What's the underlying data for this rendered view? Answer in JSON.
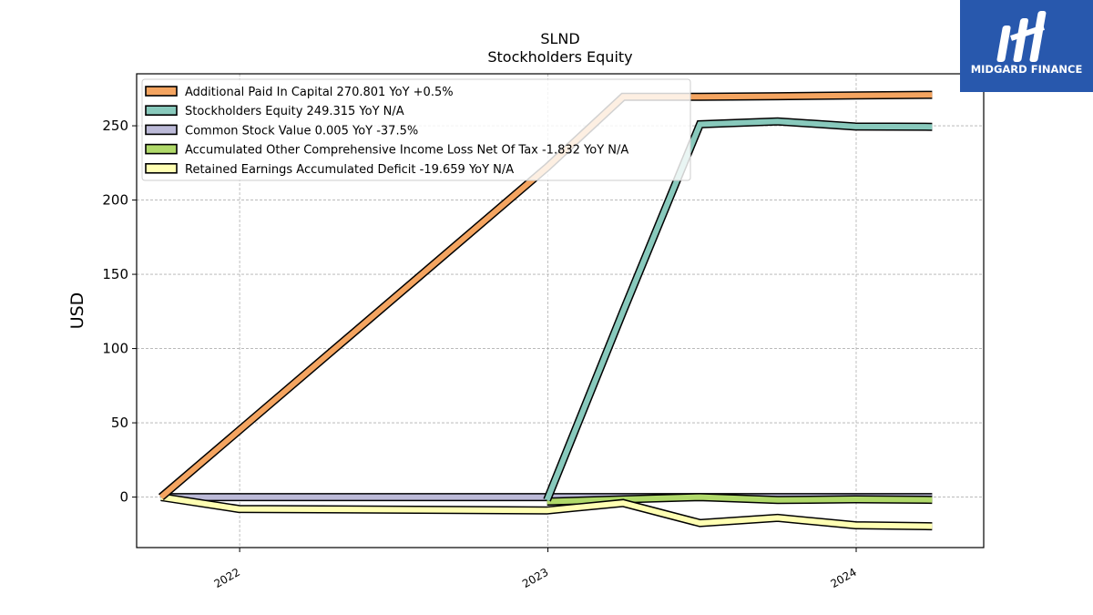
{
  "chart_data": {
    "type": "line",
    "title": "SLND",
    "subtitle": "Stockholders  Equity",
    "ylabel": "USD",
    "xlabel": "",
    "xlim": [
      "2021-09-01",
      "2024-05-31"
    ],
    "ylim": [
      -34,
      285
    ],
    "yticks": [
      0,
      50,
      100,
      150,
      200,
      250
    ],
    "xticks": [
      {
        "label": "2022",
        "date": "2022-01-01"
      },
      {
        "label": "2023",
        "date": "2023-01-01"
      },
      {
        "label": "2024",
        "date": "2024-01-01"
      }
    ],
    "grid": true,
    "legend_position": "top-left",
    "series": [
      {
        "name": "Additional Paid In Capital  270.801 YoY +0.5%",
        "color": "#f4a460",
        "points": [
          {
            "x": "2021-09-30",
            "y": 0
          },
          {
            "x": "2022-12-31",
            "y": 222
          },
          {
            "x": "2023-03-31",
            "y": 269.5
          },
          {
            "x": "2023-06-30",
            "y": 269.5
          },
          {
            "x": "2023-09-30",
            "y": 269.9
          },
          {
            "x": "2023-12-31",
            "y": 270.4
          },
          {
            "x": "2024-03-31",
            "y": 270.801
          }
        ]
      },
      {
        "name": "Stockholders Equity  249.315 YoY N/A",
        "color": "#88c9bc",
        "points": [
          {
            "x": "2022-12-31",
            "y": -2
          },
          {
            "x": "2023-03-31",
            "y": 125
          },
          {
            "x": "2023-06-30",
            "y": 251
          },
          {
            "x": "2023-09-30",
            "y": 253
          },
          {
            "x": "2023-12-31",
            "y": 249.5
          },
          {
            "x": "2024-03-31",
            "y": 249.315
          }
        ]
      },
      {
        "name": "Common Stock Value  0.005 YoY -37.5%",
        "color": "#bcbad8",
        "points": [
          {
            "x": "2021-09-30",
            "y": 0.008
          },
          {
            "x": "2022-12-31",
            "y": 0.008
          },
          {
            "x": "2023-06-30",
            "y": 0.005
          },
          {
            "x": "2024-03-31",
            "y": 0.005
          }
        ]
      },
      {
        "name": "Accumulated Other Comprehensive Income Loss Net Of Tax  -1.832 YoY N/A",
        "color": "#b0d96a",
        "points": [
          {
            "x": "2022-12-31",
            "y": -3
          },
          {
            "x": "2023-06-30",
            "y": 0
          },
          {
            "x": "2023-09-30",
            "y": -2
          },
          {
            "x": "2023-12-31",
            "y": -1.5
          },
          {
            "x": "2024-03-31",
            "y": -1.832
          }
        ]
      },
      {
        "name": "Retained Earnings Accumulated Deficit  -19.659 YoY N/A",
        "color": "#ffffb3",
        "points": [
          {
            "x": "2021-09-30",
            "y": 0
          },
          {
            "x": "2021-12-31",
            "y": -8
          },
          {
            "x": "2022-12-31",
            "y": -9
          },
          {
            "x": "2023-03-31",
            "y": -4
          },
          {
            "x": "2023-06-30",
            "y": -17.5
          },
          {
            "x": "2023-09-30",
            "y": -14
          },
          {
            "x": "2023-12-31",
            "y": -19
          },
          {
            "x": "2024-03-31",
            "y": -19.659
          }
        ]
      }
    ]
  },
  "logo": {
    "text": "MIDGARD FINANCE",
    "icon": "midgard-logo-icon",
    "background": "#2858ad"
  }
}
